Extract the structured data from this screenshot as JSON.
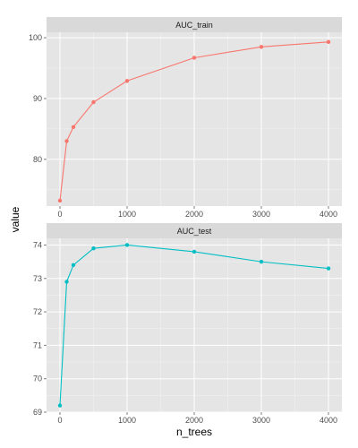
{
  "chart_data": {
    "type": "line",
    "xlabel": "n_trees",
    "ylabel": "value",
    "grid": true,
    "x_ticks": [
      0,
      1000,
      2000,
      3000,
      4000
    ],
    "facets": [
      {
        "title": "AUC_train",
        "color": "#F8766D",
        "x": [
          0,
          100,
          200,
          500,
          1000,
          2000,
          3000,
          4000
        ],
        "values": [
          73.2,
          83.0,
          85.3,
          89.4,
          92.9,
          96.7,
          98.5,
          99.3
        ],
        "ylim": [
          72.3,
          100.9
        ],
        "y_ticks": [
          80,
          90,
          100
        ]
      },
      {
        "title": "AUC_test",
        "color": "#00BFC4",
        "x": [
          0,
          100,
          200,
          500,
          1000,
          2000,
          3000,
          4000
        ],
        "values": [
          69.2,
          72.9,
          73.4,
          73.9,
          74.0,
          73.8,
          73.5,
          73.3
        ],
        "ylim": [
          69.0,
          74.2
        ],
        "y_ticks": [
          69,
          70,
          71,
          72,
          73,
          74
        ]
      }
    ]
  }
}
